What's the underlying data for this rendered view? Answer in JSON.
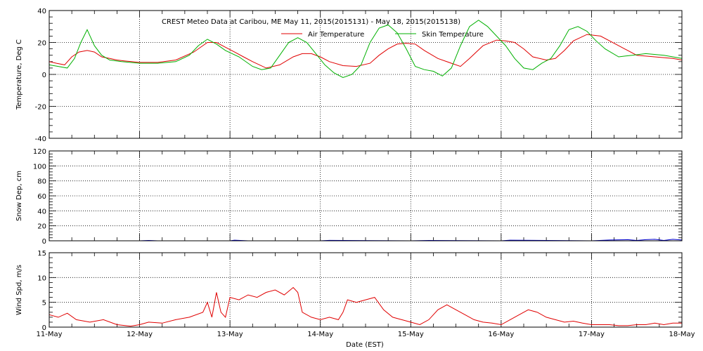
{
  "title": "CREST Meteo Data at Caribou, ME   May 11, 2015(2015131) - May 18, 2015(2015138)",
  "colors": {
    "air": "#e00000",
    "skin": "#00b000",
    "snow": "#0000cc",
    "wind": "#e00000",
    "axes": "#000000"
  },
  "chart_data": [
    {
      "type": "line",
      "ylabel": "Temperature, Deg C",
      "ylim": [
        -40,
        40
      ],
      "yticks": [
        -40,
        -20,
        0,
        20,
        40
      ],
      "xlim": [
        0,
        7
      ],
      "grid": true,
      "legend_position": "top",
      "series": [
        {
          "name": "Air Temperature",
          "color_key": "air",
          "x": [
            0,
            0.08,
            0.17,
            0.25,
            0.33,
            0.42,
            0.5,
            0.58,
            0.67,
            0.75,
            0.83,
            1.0,
            1.2,
            1.4,
            1.6,
            1.75,
            1.85,
            1.95,
            2.05,
            2.15,
            2.25,
            2.4,
            2.55,
            2.7,
            2.8,
            2.9,
            3.0,
            3.1,
            3.25,
            3.4,
            3.55,
            3.65,
            3.75,
            3.85,
            3.95,
            4.05,
            4.15,
            4.3,
            4.45,
            4.55,
            4.65,
            4.8,
            4.95,
            5.05,
            5.15,
            5.25,
            5.35,
            5.5,
            5.6,
            5.7,
            5.8,
            5.95,
            6.1,
            6.3,
            6.5,
            6.7,
            6.9,
            7.0
          ],
          "y": [
            8,
            7,
            6,
            11,
            14,
            15,
            14,
            11,
            10,
            9,
            8.5,
            7.5,
            7.5,
            9,
            14,
            20,
            20,
            17,
            14,
            11,
            8,
            4,
            6,
            11,
            13,
            13,
            11,
            8,
            5.5,
            5,
            7,
            12,
            16,
            19,
            19.5,
            19,
            15,
            10,
            7,
            5,
            10,
            18,
            21.5,
            21,
            20,
            16,
            11,
            9,
            10,
            15,
            21,
            25,
            24,
            18,
            12,
            11,
            10,
            9
          ]
        },
        {
          "name": "Skin Temperature",
          "color_key": "skin",
          "x": [
            0,
            0.1,
            0.2,
            0.28,
            0.35,
            0.42,
            0.5,
            0.58,
            0.67,
            0.8,
            1.0,
            1.2,
            1.4,
            1.55,
            1.65,
            1.75,
            1.85,
            1.95,
            2.1,
            2.25,
            2.35,
            2.45,
            2.55,
            2.65,
            2.75,
            2.85,
            2.95,
            3.05,
            3.15,
            3.25,
            3.35,
            3.45,
            3.55,
            3.65,
            3.75,
            3.85,
            3.95,
            4.05,
            4.15,
            4.25,
            4.35,
            4.45,
            4.55,
            4.65,
            4.75,
            4.85,
            4.95,
            5.05,
            5.15,
            5.25,
            5.35,
            5.45,
            5.55,
            5.65,
            5.75,
            5.85,
            5.95,
            6.05,
            6.15,
            6.3,
            6.45,
            6.6,
            6.8,
            7.0
          ],
          "y": [
            6,
            5,
            4,
            10,
            20,
            28,
            18,
            12,
            9,
            8,
            7,
            7,
            8,
            12,
            18,
            22,
            19,
            15,
            11,
            5,
            3,
            4,
            12,
            20,
            23,
            20,
            13,
            6,
            1,
            -2,
            0,
            6,
            20,
            29,
            31,
            26,
            16,
            5,
            3,
            2,
            -1,
            4,
            18,
            30,
            34,
            30,
            24,
            18,
            10,
            4,
            3,
            7,
            10,
            18,
            28,
            30,
            27,
            21,
            16,
            11,
            12,
            13,
            12,
            10
          ]
        }
      ]
    },
    {
      "type": "line",
      "ylabel": "Snow Dep, cm",
      "ylim": [
        0,
        120
      ],
      "yticks": [
        0,
        20,
        40,
        60,
        80,
        100,
        120
      ],
      "xlim": [
        0,
        7
      ],
      "grid": true,
      "series": [
        {
          "name": "",
          "color_key": "snow",
          "x": [
            0,
            1.0,
            1.1,
            1.2,
            2.0,
            2.05,
            2.2,
            3.0,
            3.1,
            4.0,
            4.2,
            5.0,
            5.1,
            6.0,
            6.2,
            6.4,
            6.5,
            6.6,
            6.7,
            6.8,
            6.9,
            7.0
          ],
          "y": [
            0,
            0,
            0.5,
            0,
            0,
            0.8,
            0,
            0,
            0.6,
            0,
            0.5,
            0,
            0.8,
            0,
            1,
            1.5,
            0.5,
            1.5,
            2,
            0.5,
            2,
            1
          ]
        }
      ]
    },
    {
      "type": "line",
      "ylabel": "Wind Spd, m/s",
      "xlabel": "Date (EST)",
      "ylim": [
        0,
        15
      ],
      "yticks": [
        0,
        5,
        10,
        15
      ],
      "xlim": [
        0,
        7
      ],
      "grid": true,
      "series": [
        {
          "name": "",
          "color_key": "wind",
          "x": [
            0,
            0.1,
            0.2,
            0.3,
            0.45,
            0.6,
            0.75,
            0.9,
            1.0,
            1.1,
            1.25,
            1.4,
            1.55,
            1.7,
            1.75,
            1.8,
            1.85,
            1.9,
            1.95,
            2.0,
            2.1,
            2.2,
            2.3,
            2.4,
            2.5,
            2.6,
            2.7,
            2.75,
            2.8,
            2.9,
            3.0,
            3.1,
            3.2,
            3.25,
            3.3,
            3.4,
            3.5,
            3.6,
            3.7,
            3.8,
            3.9,
            4.0,
            4.1,
            4.2,
            4.3,
            4.4,
            4.5,
            4.6,
            4.7,
            4.8,
            4.9,
            5.0,
            5.1,
            5.2,
            5.3,
            5.4,
            5.5,
            5.6,
            5.7,
            5.8,
            5.9,
            6.0,
            6.1,
            6.2,
            6.3,
            6.4,
            6.5,
            6.6,
            6.7,
            6.8,
            6.9,
            7.0
          ],
          "y": [
            2.5,
            2.0,
            2.8,
            1.5,
            1.0,
            1.5,
            0.5,
            0.2,
            0.5,
            1.0,
            0.8,
            1.5,
            2.0,
            3.0,
            5.0,
            2.0,
            7.0,
            3.0,
            2.0,
            6.0,
            5.5,
            6.5,
            6.0,
            7.0,
            7.5,
            6.5,
            8.0,
            7.0,
            3.0,
            2.0,
            1.5,
            2.0,
            1.5,
            3.0,
            5.5,
            5.0,
            5.5,
            6.0,
            3.5,
            2.0,
            1.5,
            1.0,
            0.5,
            1.5,
            3.5,
            4.5,
            3.5,
            2.5,
            1.5,
            1.0,
            0.8,
            0.5,
            1.5,
            2.5,
            3.5,
            3.0,
            2.0,
            1.5,
            1.0,
            1.2,
            0.8,
            0.5,
            0.5,
            0.5,
            0.3,
            0.3,
            0.5,
            0.5,
            0.8,
            0.5,
            0.8,
            0.8
          ]
        }
      ]
    }
  ],
  "x_tick_labels": [
    "11-May",
    "12-May",
    "13-May",
    "14-May",
    "15-May",
    "16-May",
    "17-May",
    "18-May"
  ]
}
